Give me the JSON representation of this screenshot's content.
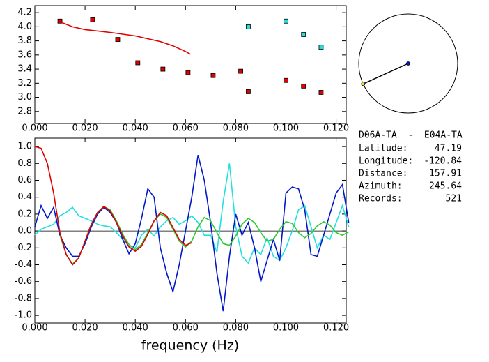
{
  "chart_data": [
    {
      "type": "scatter",
      "xlim": [
        0,
        0.124
      ],
      "ylim": [
        2.63,
        4.3
      ],
      "xticks": [
        {
          "value": 0,
          "label": "0.000"
        },
        {
          "value": 0.02,
          "label": "0.020"
        },
        {
          "value": 0.04,
          "label": "0.040"
        },
        {
          "value": 0.06,
          "label": "0.060"
        },
        {
          "value": 0.08,
          "label": "0.080"
        },
        {
          "value": 0.1,
          "label": "0.100"
        },
        {
          "value": 0.12,
          "label": "0.120"
        }
      ],
      "yticks": [
        {
          "value": 2.8,
          "label": "2.8"
        },
        {
          "value": 3.0,
          "label": "3.0"
        },
        {
          "value": 3.2,
          "label": "3.2"
        },
        {
          "value": 3.4,
          "label": "3.4"
        },
        {
          "value": 3.6,
          "label": "3.6"
        },
        {
          "value": 3.8,
          "label": "3.8"
        },
        {
          "value": 4.0,
          "label": "4.0"
        },
        {
          "value": 4.2,
          "label": "4.2"
        }
      ],
      "series": [
        {
          "type": "scatter",
          "color": "#e00000",
          "x": [
            0.01,
            0.023,
            0.033,
            0.041,
            0.051,
            0.061,
            0.071,
            0.082,
            0.085,
            0.1,
            0.107,
            0.114
          ],
          "values": [
            4.08,
            4.1,
            3.82,
            3.49,
            3.4,
            3.35,
            3.31,
            3.37,
            3.08,
            3.24,
            3.16,
            3.07
          ]
        },
        {
          "type": "scatter",
          "color": "#20e0e0",
          "x": [
            0.085,
            0.1,
            0.107,
            0.114
          ],
          "values": [
            4.0,
            4.08,
            3.89,
            3.71
          ]
        },
        {
          "type": "line",
          "color": "#e00000",
          "x": [
            0.01,
            0.015,
            0.02,
            0.03,
            0.04,
            0.05,
            0.055,
            0.06,
            0.062
          ],
          "values": [
            4.07,
            4.0,
            3.96,
            3.92,
            3.87,
            3.79,
            3.73,
            3.65,
            3.61
          ]
        }
      ]
    },
    {
      "type": "line",
      "xlabel": "frequency (Hz)",
      "xlim": [
        0,
        0.124
      ],
      "ylim": [
        -1.09,
        1.1
      ],
      "xticks": [
        {
          "value": 0,
          "label": "0.000"
        },
        {
          "value": 0.02,
          "label": "0.020"
        },
        {
          "value": 0.04,
          "label": "0.040"
        },
        {
          "value": 0.06,
          "label": "0.060"
        },
        {
          "value": 0.08,
          "label": "0.080"
        },
        {
          "value": 0.1,
          "label": "0.100"
        },
        {
          "value": 0.12,
          "label": "0.120"
        }
      ],
      "yticks": [
        {
          "value": -1,
          "label": "-1.0"
        },
        -0.8,
        -0.6,
        -0.4,
        -0.2,
        {
          "value": 0,
          "label": "0.0"
        },
        0.2,
        0.4,
        0.6,
        0.8,
        {
          "value": 1,
          "label": "1.0"
        }
      ],
      "x": [
        0,
        0.0025,
        0.005,
        0.0075,
        0.01,
        0.0125,
        0.015,
        0.0175,
        0.02,
        0.0225,
        0.025,
        0.0275,
        0.03,
        0.0325,
        0.035,
        0.0375,
        0.04,
        0.0425,
        0.045,
        0.0475,
        0.05,
        0.0525,
        0.055,
        0.0575,
        0.06,
        0.0625,
        0.065,
        0.0675,
        0.07,
        0.0725,
        0.075,
        0.0775,
        0.08,
        0.0825,
        0.085,
        0.0875,
        0.09,
        0.0925,
        0.095,
        0.0975,
        0.1,
        0.1025,
        0.105,
        0.1075,
        0.11,
        0.1125,
        0.115,
        0.1175,
        0.12,
        0.1225,
        0.125
      ],
      "series": [
        {
          "color": "#20e0e0",
          "values": [
            -0.05,
            0.02,
            0.05,
            0.08,
            0.18,
            0.22,
            0.28,
            0.18,
            0.15,
            0.12,
            0.08,
            0.06,
            0.05,
            -0.02,
            -0.1,
            -0.18,
            -0.2,
            -0.05,
            0.02,
            -0.06,
            0.05,
            0.12,
            0.16,
            0.08,
            0.12,
            0.18,
            0.1,
            -0.05,
            -0.05,
            -0.25,
            0.35,
            0.8,
            0.05,
            -0.3,
            -0.38,
            -0.2,
            -0.28,
            -0.08,
            -0.3,
            -0.35,
            -0.2,
            0.0,
            0.25,
            0.3,
            0.05,
            -0.2,
            -0.05,
            -0.1,
            0.1,
            0.3,
            0.05
          ]
        },
        {
          "color": "#0018c8",
          "values": [
            0.05,
            0.3,
            0.15,
            0.28,
            -0.05,
            -0.2,
            -0.3,
            -0.3,
            -0.15,
            0.05,
            0.2,
            0.28,
            0.22,
            0.1,
            -0.1,
            -0.27,
            -0.15,
            0.15,
            0.5,
            0.4,
            -0.2,
            -0.5,
            -0.72,
            -0.4,
            0.0,
            0.4,
            0.9,
            0.6,
            0.1,
            -0.5,
            -0.95,
            -0.3,
            0.2,
            -0.05,
            0.1,
            -0.2,
            -0.6,
            -0.35,
            -0.1,
            -0.35,
            0.45,
            0.52,
            0.5,
            0.25,
            -0.28,
            -0.3,
            -0.05,
            0.2,
            0.45,
            0.55,
            0.1
          ]
        },
        {
          "color": "#30c830",
          "values": [
            null,
            null,
            null,
            null,
            -0.05,
            -0.28,
            -0.39,
            -0.32,
            -0.12,
            0.08,
            0.22,
            0.29,
            0.25,
            0.12,
            -0.04,
            -0.16,
            -0.22,
            -0.16,
            -0.02,
            0.12,
            0.2,
            0.16,
            0.02,
            -0.12,
            -0.19,
            -0.12,
            0.05,
            0.16,
            0.12,
            -0.02,
            -0.15,
            -0.17,
            -0.06,
            0.08,
            0.15,
            0.1,
            -0.02,
            -0.12,
            -0.1,
            0.02,
            0.11,
            0.09,
            -0.02,
            -0.08,
            -0.03,
            0.06,
            0.11,
            0.07,
            -0.02,
            -0.05,
            -0.01
          ]
        },
        {
          "color": "#e00000",
          "values": [
            1.0,
            0.98,
            0.8,
            0.45,
            -0.02,
            -0.28,
            -0.4,
            -0.32,
            -0.12,
            0.08,
            0.22,
            0.29,
            0.24,
            0.1,
            -0.06,
            -0.19,
            -0.24,
            -0.18,
            -0.04,
            0.12,
            0.22,
            0.18,
            0.04,
            -0.1,
            -0.17,
            -0.14,
            null,
            null,
            null,
            null,
            null,
            null,
            null,
            null,
            null,
            null,
            null,
            null,
            null,
            null,
            null,
            null,
            null,
            null,
            null,
            null,
            null,
            null,
            null,
            null,
            null
          ]
        }
      ]
    }
  ],
  "info": {
    "title": "D06A-TA  -  E04A-TA",
    "rows": [
      {
        "label": "Latitude:",
        "value": 47.19
      },
      {
        "label": "Longitude:",
        "value": -120.84
      },
      {
        "label": "Distance:",
        "value": 157.91
      },
      {
        "label": "Azimuth:",
        "value": 245.64
      },
      {
        "label": "Records:",
        "value": 521
      }
    ]
  }
}
